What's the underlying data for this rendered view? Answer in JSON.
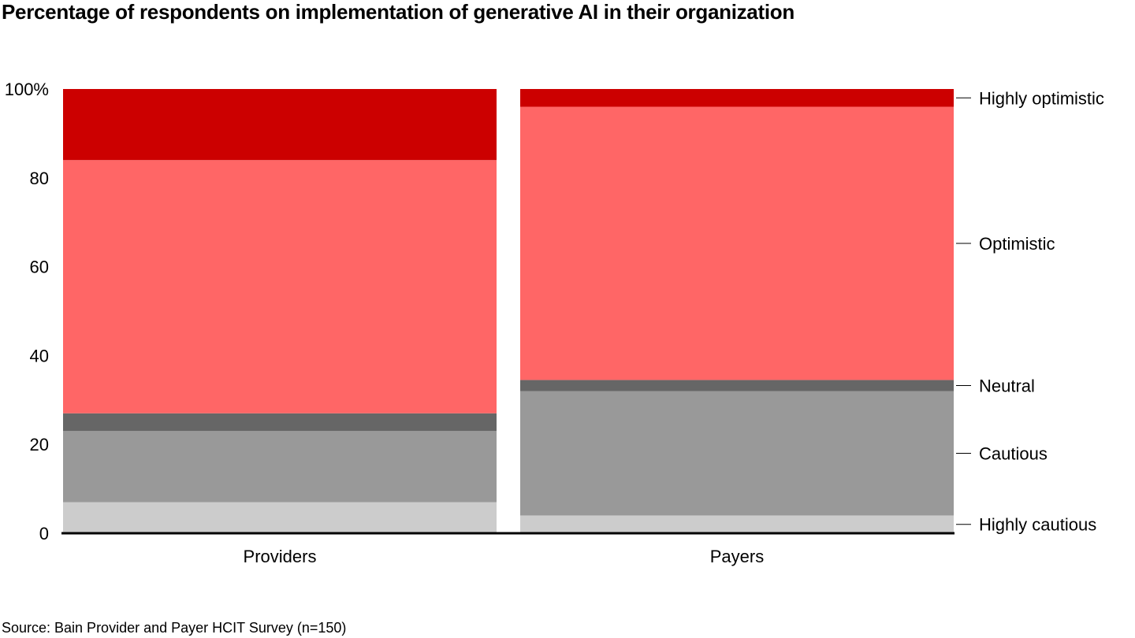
{
  "title": "Percentage of respondents on implementation of generative AI in their organization",
  "source": "Source: Bain Provider and Payer HCIT Survey (n=150)",
  "chart_data": {
    "type": "bar",
    "stacked": true,
    "title": "Percentage of respondents on implementation of generative AI in their organization",
    "categories": [
      "Providers",
      "Payers"
    ],
    "series": [
      {
        "name": "Highly cautious",
        "values": [
          7,
          4
        ],
        "color": "#cccccc"
      },
      {
        "name": "Cautious",
        "values": [
          16,
          28
        ],
        "color": "#999999"
      },
      {
        "name": "Neutral",
        "values": [
          4,
          2.5
        ],
        "color": "#666666"
      },
      {
        "name": "Optimistic",
        "values": [
          57,
          61.5
        ],
        "color": "#ff6666"
      },
      {
        "name": "Highly optimistic",
        "values": [
          16,
          4
        ],
        "color": "#cc0000"
      }
    ],
    "yticks": [
      "0",
      "20",
      "40",
      "60",
      "80",
      "100%"
    ],
    "ytick_values": [
      0,
      20,
      40,
      60,
      80,
      100
    ],
    "ylim": [
      0,
      100
    ],
    "xlabel": "",
    "ylabel": "",
    "grid": false,
    "legend": "right"
  }
}
